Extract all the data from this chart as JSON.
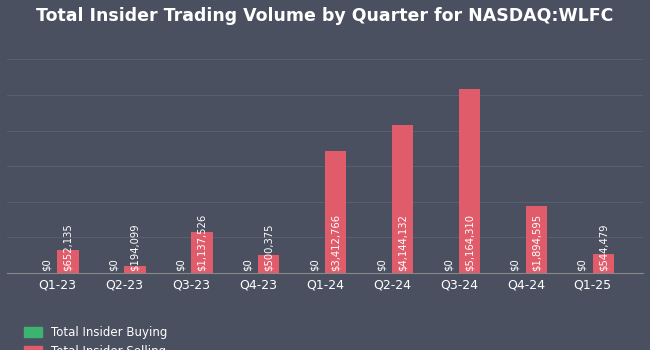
{
  "title": "Total Insider Trading Volume by Quarter for NASDAQ:WLFC",
  "quarters": [
    "Q1-23",
    "Q2-23",
    "Q3-23",
    "Q4-23",
    "Q1-24",
    "Q2-24",
    "Q3-24",
    "Q4-24",
    "Q1-25"
  ],
  "buying": [
    0,
    0,
    0,
    0,
    0,
    0,
    0,
    0,
    0
  ],
  "selling": [
    652135,
    194099,
    1137526,
    500375,
    3412766,
    4144132,
    5164310,
    1894595,
    544479
  ],
  "buy_color": "#3cb371",
  "sell_color": "#e05c6a",
  "bg_color": "#4a5060",
  "text_color": "#ffffff",
  "grid_color": "#5a6275",
  "bar_width": 0.32,
  "title_fontsize": 12.5,
  "tick_fontsize": 9,
  "label_fontsize": 7.2
}
